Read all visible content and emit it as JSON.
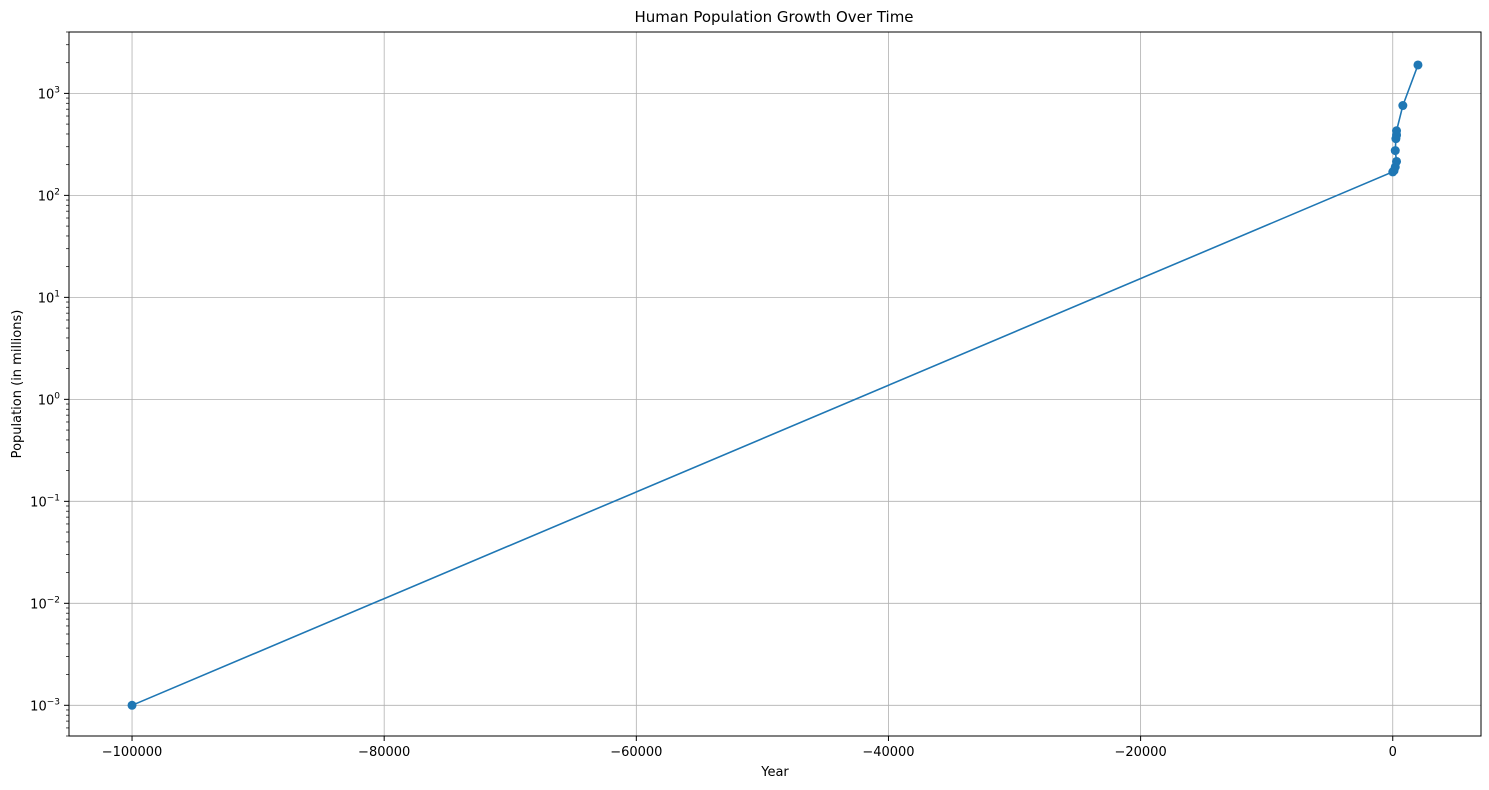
{
  "chart_data": {
    "type": "line",
    "title": "Human Population Growth Over Time",
    "xlabel": "Year",
    "ylabel": "Population (in millions)",
    "yscale": "log",
    "xlim": [
      -105000,
      7000
    ],
    "ylim": [
      0.0005,
      4000
    ],
    "x_ticks": [
      -100000,
      -80000,
      -60000,
      -40000,
      -20000,
      0
    ],
    "x_tick_labels": [
      "−100000",
      "−80000",
      "−60000",
      "−40000",
      "−20000",
      "0"
    ],
    "y_ticks": [
      0.001,
      0.01,
      0.1,
      1,
      10,
      100,
      1000
    ],
    "y_tick_base": "10",
    "y_tick_exponents": [
      "−3",
      "−2",
      "−1",
      "0",
      "1",
      "2",
      "3"
    ],
    "grid": true,
    "series": [
      {
        "color": "#1f77b4",
        "marker": "circle",
        "points": [
          {
            "x": -100000,
            "y": 0.001
          },
          {
            "x": 0,
            "y": 170
          },
          {
            "x": 100,
            "y": 175
          },
          {
            "x": 200,
            "y": 190
          },
          {
            "x": 300,
            "y": 215
          },
          {
            "x": 200,
            "y": 275
          },
          {
            "x": 250,
            "y": 360
          },
          {
            "x": 300,
            "y": 390
          },
          {
            "x": 300,
            "y": 430
          },
          {
            "x": 800,
            "y": 760
          },
          {
            "x": 2000,
            "y": 1900
          }
        ]
      }
    ]
  }
}
